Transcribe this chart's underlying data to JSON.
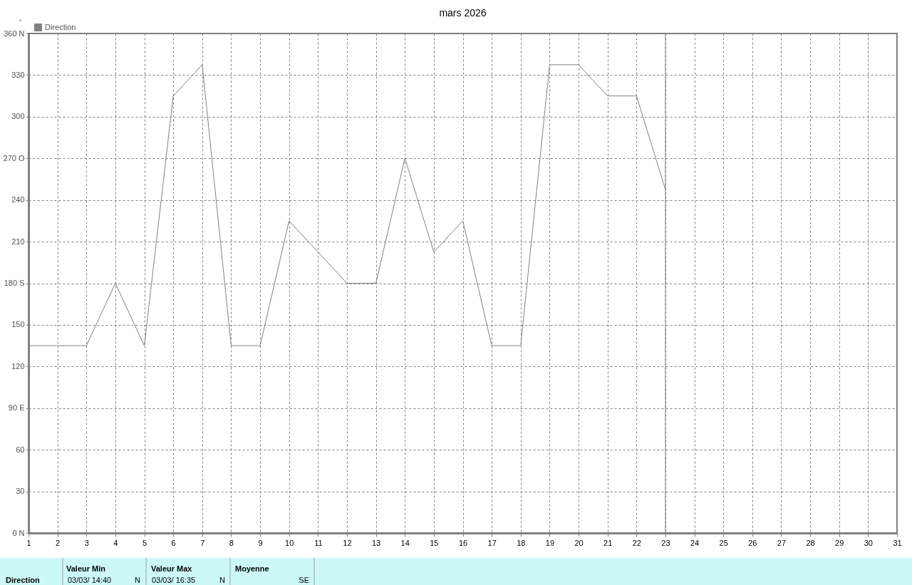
{
  "chart_data": {
    "type": "line",
    "title": "mars 2026",
    "ylabel": "°",
    "x": [
      1,
      2,
      3,
      4,
      5,
      6,
      7,
      8,
      9,
      10,
      11,
      12,
      13,
      14,
      15,
      16,
      17,
      18,
      19,
      20,
      21,
      22,
      23
    ],
    "series": [
      {
        "name": "Direction",
        "color": "#808080",
        "values": [
          135,
          135,
          135,
          180,
          135,
          315,
          337.5,
          135,
          135,
          225,
          202.5,
          180,
          180,
          270,
          202.5,
          225,
          135,
          135,
          337.5,
          337.5,
          315,
          315,
          247.5
        ]
      }
    ],
    "xlim": [
      1,
      31
    ],
    "xticks": [
      1,
      2,
      3,
      4,
      5,
      6,
      7,
      8,
      9,
      10,
      11,
      12,
      13,
      14,
      15,
      16,
      17,
      18,
      19,
      20,
      21,
      22,
      23,
      24,
      25,
      26,
      27,
      28,
      29,
      30,
      31
    ],
    "ylim": [
      0,
      360
    ],
    "yticks": [
      {
        "value": 0,
        "label": "0 N"
      },
      30,
      60,
      {
        "value": 90,
        "label": "90 E"
      },
      120,
      150,
      {
        "value": 180,
        "label": "180 S"
      },
      210,
      240,
      {
        "value": 270,
        "label": "270 O"
      },
      300,
      330,
      {
        "value": 360,
        "label": "360 N"
      }
    ],
    "grid": true,
    "legend": "top left",
    "ref_lines": [
      {
        "axis": "x",
        "value": 23,
        "color": "#808080"
      }
    ],
    "annotations": [
      "Direction",
      "Valeur Min",
      "03/03/ 14:40",
      "N",
      "Valeur Max",
      "03/03/ 16:35",
      "N",
      "Moyenne",
      "SE"
    ]
  }
}
